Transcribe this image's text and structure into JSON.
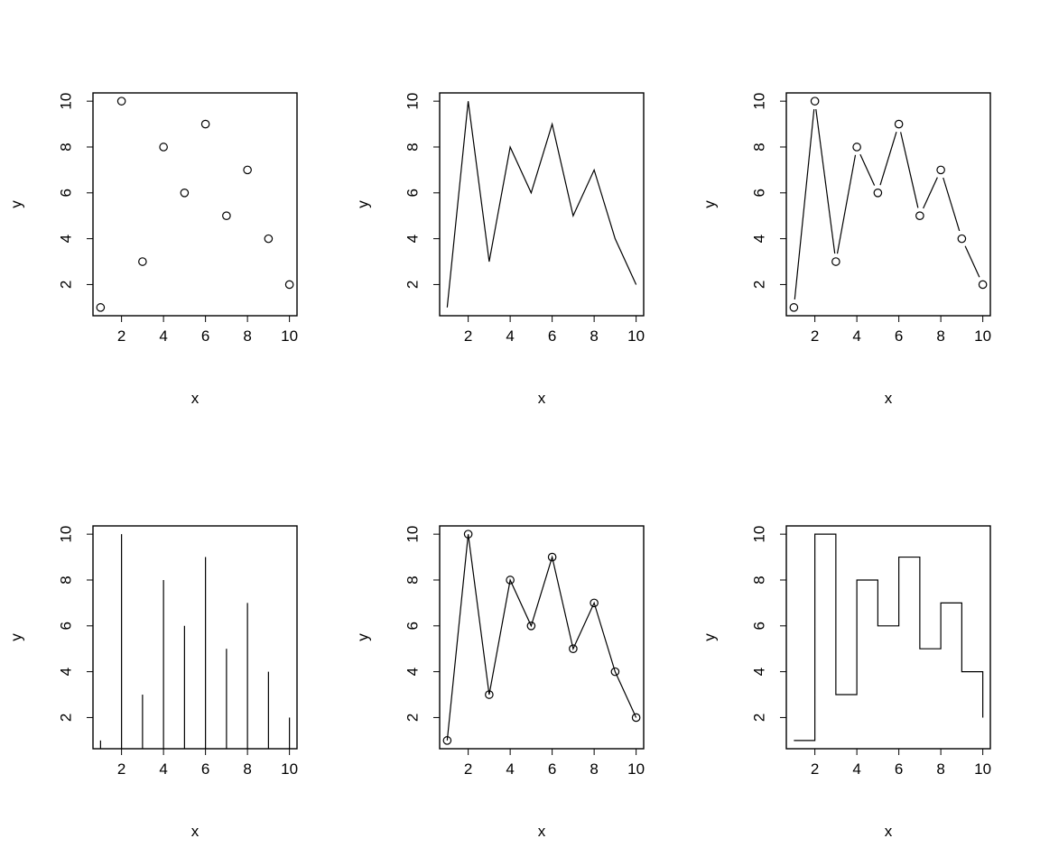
{
  "chart_data": [
    {
      "type": "scatter",
      "r_plot_type": "p",
      "x": [
        1,
        2,
        3,
        4,
        5,
        6,
        7,
        8,
        9,
        10
      ],
      "y": [
        1,
        10,
        3,
        8,
        6,
        9,
        5,
        7,
        4,
        2
      ],
      "xlabel": "x",
      "ylabel": "y",
      "xlim": [
        0.64,
        10.36
      ],
      "ylim": [
        0.64,
        10.36
      ],
      "xticks": [
        2,
        4,
        6,
        8,
        10
      ],
      "yticks": [
        2,
        4,
        6,
        8,
        10
      ],
      "grid": false
    },
    {
      "type": "line",
      "r_plot_type": "l",
      "x": [
        1,
        2,
        3,
        4,
        5,
        6,
        7,
        8,
        9,
        10
      ],
      "y": [
        1,
        10,
        3,
        8,
        6,
        9,
        5,
        7,
        4,
        2
      ],
      "xlabel": "x",
      "ylabel": "y",
      "xlim": [
        0.64,
        10.36
      ],
      "ylim": [
        0.64,
        10.36
      ],
      "xticks": [
        2,
        4,
        6,
        8,
        10
      ],
      "yticks": [
        2,
        4,
        6,
        8,
        10
      ],
      "grid": false
    },
    {
      "type": "line",
      "r_plot_type": "b",
      "x": [
        1,
        2,
        3,
        4,
        5,
        6,
        7,
        8,
        9,
        10
      ],
      "y": [
        1,
        10,
        3,
        8,
        6,
        9,
        5,
        7,
        4,
        2
      ],
      "xlabel": "x",
      "ylabel": "y",
      "xlim": [
        0.64,
        10.36
      ],
      "ylim": [
        0.64,
        10.36
      ],
      "xticks": [
        2,
        4,
        6,
        8,
        10
      ],
      "yticks": [
        2,
        4,
        6,
        8,
        10
      ],
      "grid": false
    },
    {
      "type": "bar",
      "r_plot_type": "h",
      "x": [
        1,
        2,
        3,
        4,
        5,
        6,
        7,
        8,
        9,
        10
      ],
      "y": [
        1,
        10,
        3,
        8,
        6,
        9,
        5,
        7,
        4,
        2
      ],
      "xlabel": "x",
      "ylabel": "y",
      "xlim": [
        0.64,
        10.36
      ],
      "ylim": [
        0.64,
        10.36
      ],
      "xticks": [
        2,
        4,
        6,
        8,
        10
      ],
      "yticks": [
        2,
        4,
        6,
        8,
        10
      ],
      "grid": false
    },
    {
      "type": "line",
      "r_plot_type": "o",
      "x": [
        1,
        2,
        3,
        4,
        5,
        6,
        7,
        8,
        9,
        10
      ],
      "y": [
        1,
        10,
        3,
        8,
        6,
        9,
        5,
        7,
        4,
        2
      ],
      "xlabel": "x",
      "ylabel": "y",
      "xlim": [
        0.64,
        10.36
      ],
      "ylim": [
        0.64,
        10.36
      ],
      "xticks": [
        2,
        4,
        6,
        8,
        10
      ],
      "yticks": [
        2,
        4,
        6,
        8,
        10
      ],
      "grid": false
    },
    {
      "type": "line",
      "r_plot_type": "s",
      "x": [
        1,
        2,
        3,
        4,
        5,
        6,
        7,
        8,
        9,
        10
      ],
      "y": [
        1,
        10,
        3,
        8,
        6,
        9,
        5,
        7,
        4,
        2
      ],
      "xlabel": "x",
      "ylabel": "y",
      "xlim": [
        0.64,
        10.36
      ],
      "ylim": [
        0.64,
        10.36
      ],
      "xticks": [
        2,
        4,
        6,
        8,
        10
      ],
      "yticks": [
        2,
        4,
        6,
        8,
        10
      ],
      "grid": false
    }
  ]
}
